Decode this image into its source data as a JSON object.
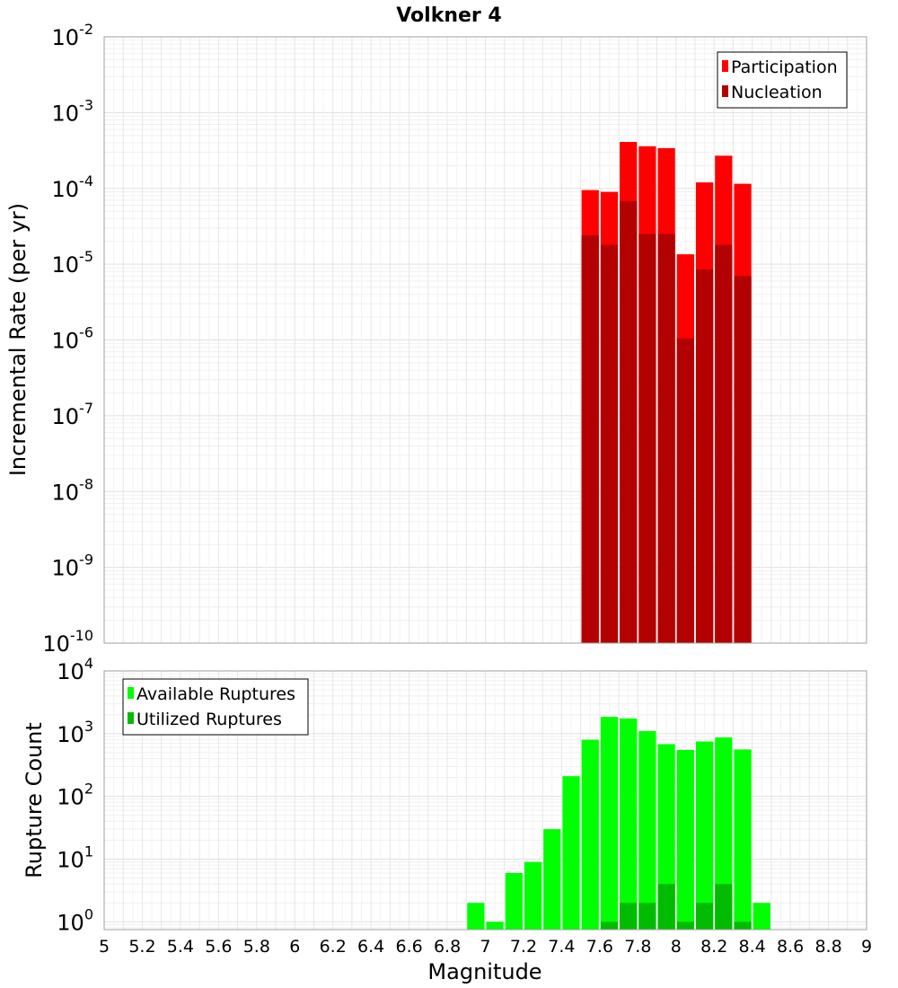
{
  "chart_data": [
    {
      "type": "bar",
      "title": "Volkner 4",
      "xlabel": "",
      "ylabel": "Incremental Rate (per yr)",
      "yscale": "log",
      "xlim": [
        5,
        9
      ],
      "ylim": [
        1e-10,
        0.01
      ],
      "ytick_exponents": [
        "-10",
        "-9",
        "-8",
        "-7",
        "-6",
        "-5",
        "-4",
        "-3",
        "-2"
      ],
      "grid": true,
      "legend_position": "top-right",
      "bin_width": 0.1,
      "x": [
        7.55,
        7.65,
        7.75,
        7.85,
        7.95,
        8.05,
        8.15,
        8.25,
        8.35
      ],
      "series": [
        {
          "name": "Participation",
          "color": "#ff0000",
          "values": [
            9.5e-05,
            9e-05,
            0.00041,
            0.00036,
            0.00034,
            1.35e-05,
            0.00012,
            0.00027,
            0.000115
          ]
        },
        {
          "name": "Nucleation",
          "color": "#b30000",
          "values": [
            2.4e-05,
            1.8e-05,
            6.8e-05,
            2.5e-05,
            2.5e-05,
            1.05e-06,
            8.5e-06,
            1.8e-05,
            7e-06
          ]
        }
      ]
    },
    {
      "type": "bar",
      "title": "",
      "xlabel": "Magnitude",
      "ylabel": "Rupture Count",
      "yscale": "log",
      "xlim": [
        5,
        9
      ],
      "ylim": [
        0.75,
        10000
      ],
      "ytick_exponents": [
        "0",
        "1",
        "2",
        "3",
        "4"
      ],
      "xticks": [
        "5",
        "5.2",
        "5.4",
        "5.6",
        "5.8",
        "6",
        "6.2",
        "6.4",
        "6.6",
        "6.8",
        "7",
        "7.2",
        "7.4",
        "7.6",
        "7.8",
        "8",
        "8.2",
        "8.4",
        "8.6",
        "8.8",
        "9"
      ],
      "grid": true,
      "legend_position": "top-left",
      "bin_width": 0.1,
      "x": [
        6.95,
        7.05,
        7.15,
        7.25,
        7.35,
        7.45,
        7.55,
        7.65,
        7.75,
        7.85,
        7.95,
        8.05,
        8.15,
        8.25,
        8.35,
        8.45
      ],
      "series": [
        {
          "name": "Available Ruptures",
          "color": "#00ff00",
          "values": [
            2,
            1,
            6,
            9,
            30,
            210,
            800,
            1850,
            1750,
            1100,
            680,
            550,
            750,
            870,
            560,
            2
          ]
        },
        {
          "name": "Utilized Ruptures",
          "color": "#00bb00",
          "values": [
            0,
            0,
            0,
            0,
            0,
            0,
            0,
            1,
            2,
            2,
            4,
            1,
            2,
            4,
            1,
            0
          ]
        }
      ]
    }
  ]
}
